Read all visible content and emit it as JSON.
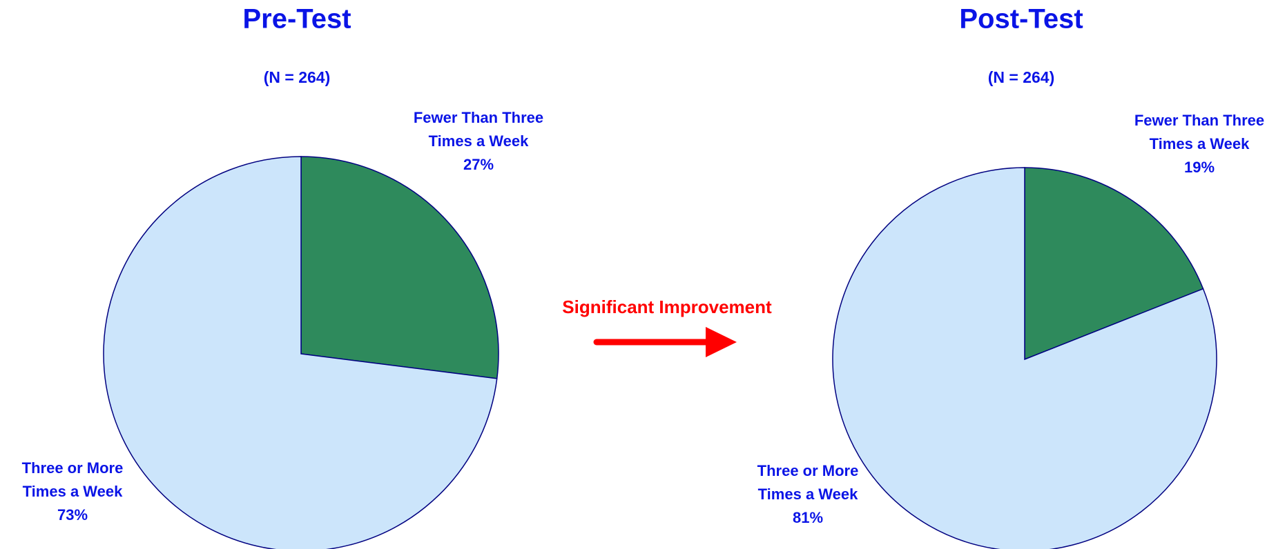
{
  "chart_data": [
    {
      "type": "pie",
      "title": "Pre-Test",
      "subtitle": "(N = 264)",
      "categories": [
        "Fewer Than Three Times a Week",
        "Three or More Times a Week"
      ],
      "values": [
        27,
        73
      ],
      "value_labels": [
        "27%",
        "73%"
      ],
      "colors": [
        "#2e8a5c",
        "#cce5fb"
      ]
    },
    {
      "type": "pie",
      "title": "Post-Test",
      "subtitle": "(N = 264)",
      "categories": [
        "Fewer Than Three Times a Week",
        "Three or More Times a Week"
      ],
      "values": [
        19,
        81
      ],
      "value_labels": [
        "19%",
        "81%"
      ],
      "colors": [
        "#2e8a5c",
        "#cce5fb"
      ]
    }
  ],
  "annotation": "Significant Improvement"
}
